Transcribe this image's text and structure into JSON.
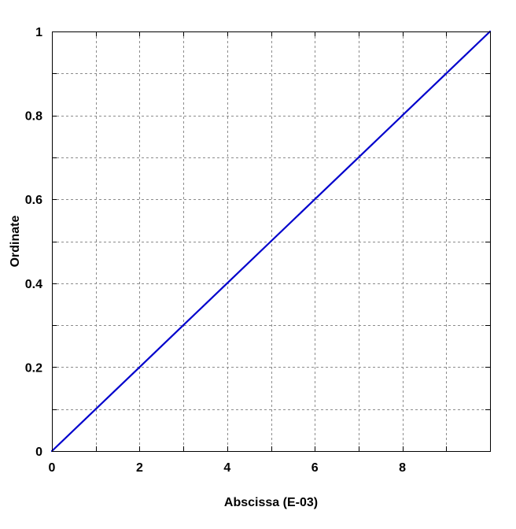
{
  "chart_data": {
    "type": "line",
    "xlabel": "Abscissa (E-03)",
    "ylabel": "Ordinate",
    "xlim": [
      0,
      10
    ],
    "ylim": [
      0,
      1
    ],
    "x_ticks": [
      0,
      2,
      4,
      6,
      8
    ],
    "x_tick_labels": [
      "0",
      "2",
      "4",
      "6",
      "8"
    ],
    "x_minor_gridlines": [
      1,
      3,
      5,
      7,
      9
    ],
    "y_ticks": [
      0,
      0.2,
      0.4,
      0.6,
      0.8,
      1
    ],
    "y_tick_labels": [
      "0",
      "0.2",
      "0.4",
      "0.6",
      "0.8",
      "1"
    ],
    "y_minor_gridlines": [
      0.1,
      0.3,
      0.5,
      0.7,
      0.9
    ],
    "grid": true,
    "grid_style": "dashed",
    "series": [
      {
        "color": "#0000cc",
        "x": [
          0,
          1,
          2,
          3,
          4,
          5,
          6,
          7,
          8,
          9,
          10
        ],
        "y": [
          0,
          0.1,
          0.2,
          0.3,
          0.4,
          0.5,
          0.6,
          0.7,
          0.8,
          0.9,
          1
        ]
      }
    ]
  }
}
